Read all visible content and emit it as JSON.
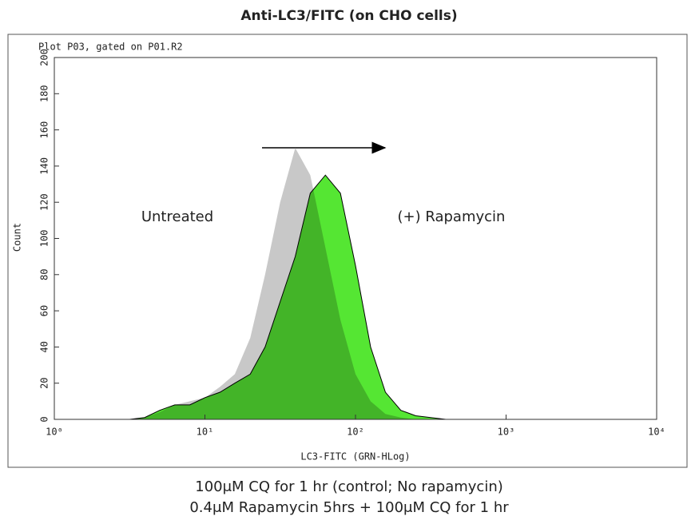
{
  "chart_data": {
    "type": "area",
    "title": "Anti-LC3/FITC (on CHO cells)",
    "plot_label": "Plot P03, gated on P01.R2",
    "x_label": "LC3-FITC (GRN-HLog)",
    "y_label": "Count",
    "x_scale": "log",
    "x": [
      1,
      1.26,
      1.58,
      2,
      2.51,
      3.16,
      3.98,
      5.01,
      6.31,
      7.94,
      10,
      12.6,
      15.8,
      20,
      25.1,
      31.6,
      39.8,
      50.1,
      63.1,
      79.4,
      100,
      126,
      158,
      200,
      251,
      316,
      398,
      501,
      631,
      794,
      1000,
      10000
    ],
    "series": [
      {
        "name": "Untreated",
        "color": "#c8c8c8",
        "values": [
          0,
          0,
          0,
          0,
          0,
          0,
          1,
          4,
          8,
          10,
          12,
          18,
          25,
          45,
          80,
          120,
          150,
          135,
          95,
          55,
          25,
          10,
          3,
          1,
          0,
          0,
          0,
          0,
          0,
          0,
          0,
          0
        ]
      },
      {
        "name": "(+) Rapamycin",
        "color": "#55e633",
        "values": [
          0,
          0,
          0,
          0,
          0,
          0,
          1,
          5,
          8,
          8,
          12,
          15,
          20,
          25,
          40,
          65,
          90,
          125,
          135,
          125,
          85,
          40,
          15,
          5,
          2,
          1,
          0,
          0,
          0,
          0,
          0,
          0
        ]
      }
    ],
    "xlim": [
      1,
      10000
    ],
    "xticks": [
      {
        "value": 1,
        "label": "10⁰"
      },
      {
        "value": 10,
        "label": "10¹"
      },
      {
        "value": 100,
        "label": "10²"
      },
      {
        "value": 1000,
        "label": "10³"
      },
      {
        "value": 10000,
        "label": "10⁴"
      }
    ],
    "ylim": [
      0,
      200
    ],
    "yticks": [
      0,
      20,
      40,
      60,
      80,
      100,
      120,
      140,
      160,
      180,
      200
    ],
    "captions": [
      "100μM CQ for 1 hr (control; No rapamycin)",
      "0.4μM Rapamycin 5hrs + 100μM CQ for 1 hr"
    ]
  }
}
